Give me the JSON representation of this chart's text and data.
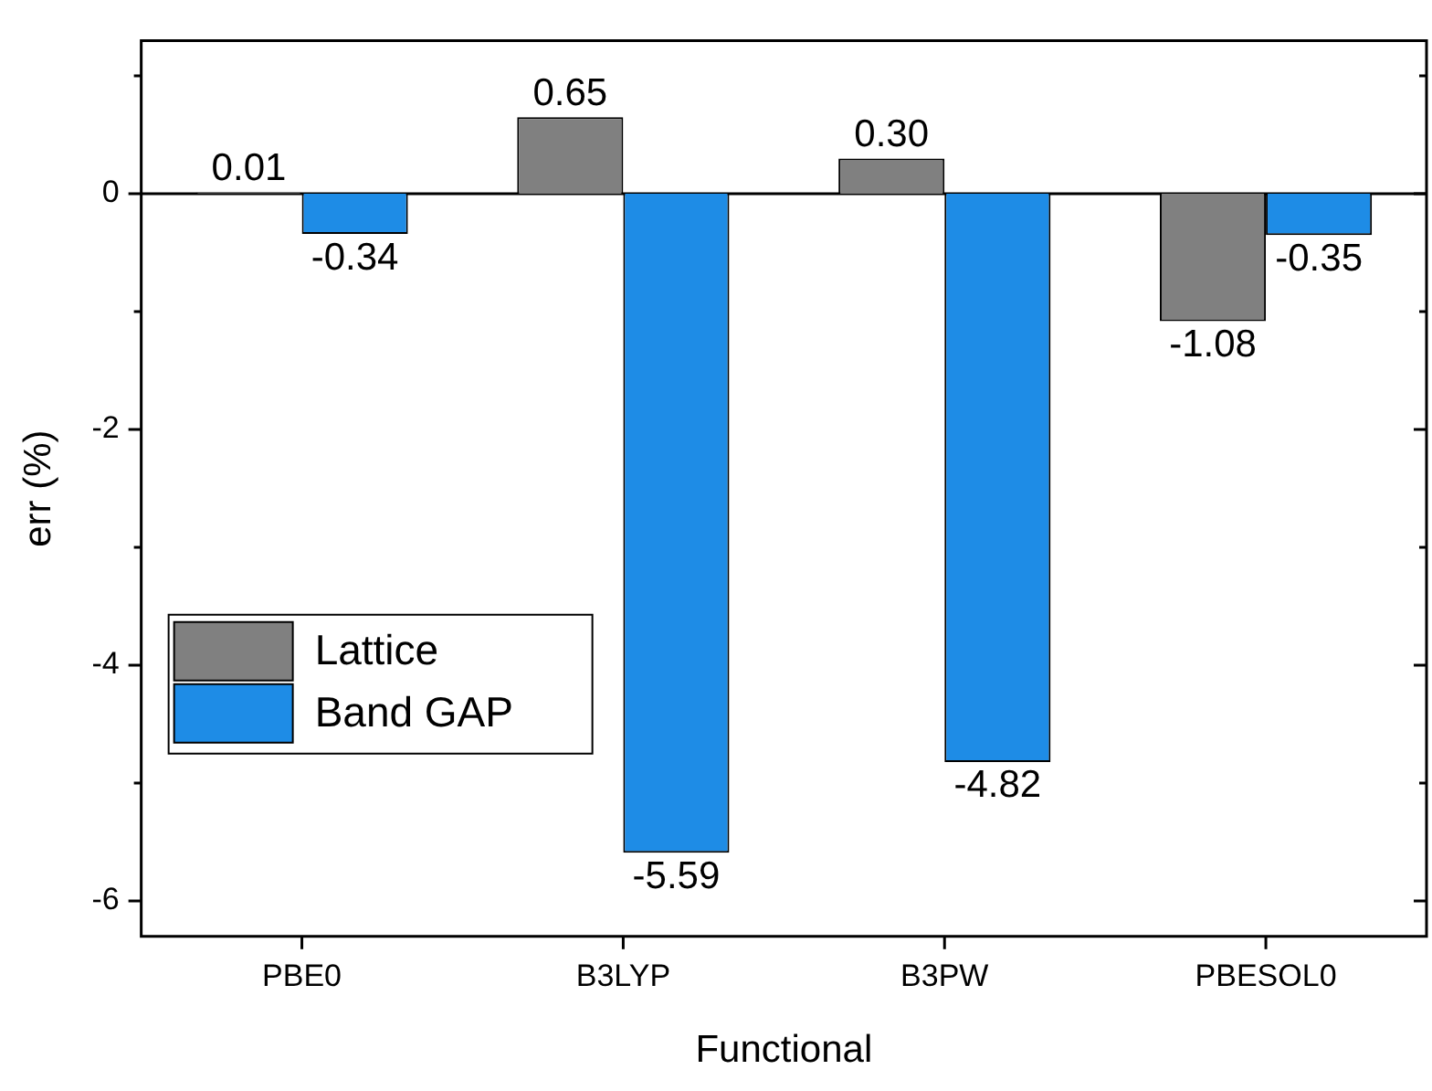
{
  "chart_data": {
    "type": "bar",
    "xlabel": "Functional",
    "ylabel": "err (%)",
    "categories": [
      "PBE0",
      "B3LYP",
      "B3PW",
      "PBESOL0"
    ],
    "series": [
      {
        "name": "Lattice",
        "color": "#808080",
        "values": [
          0.01,
          0.65,
          0.3,
          -1.08
        ],
        "value_labels": [
          "0.01",
          "0.65",
          "0.30",
          "-1.08"
        ]
      },
      {
        "name": "Band GAP",
        "color": "#1e8ce6",
        "values": [
          -0.34,
          -5.59,
          -4.82,
          -0.35
        ],
        "value_labels": [
          "-0.34",
          "-5.59",
          "-4.82",
          "-0.35"
        ]
      }
    ],
    "ylim": [
      -6.3,
      1.3
    ],
    "yticks": [
      {
        "value": 1,
        "label": null
      },
      0,
      {
        "value": -1,
        "label": null
      },
      -2,
      {
        "value": -3,
        "label": null
      },
      -4,
      {
        "value": -5,
        "label": null
      },
      -6
    ],
    "ref_lines": [
      {
        "axis": "y",
        "value": 0
      }
    ],
    "grid": false,
    "legend": "bottom left"
  }
}
